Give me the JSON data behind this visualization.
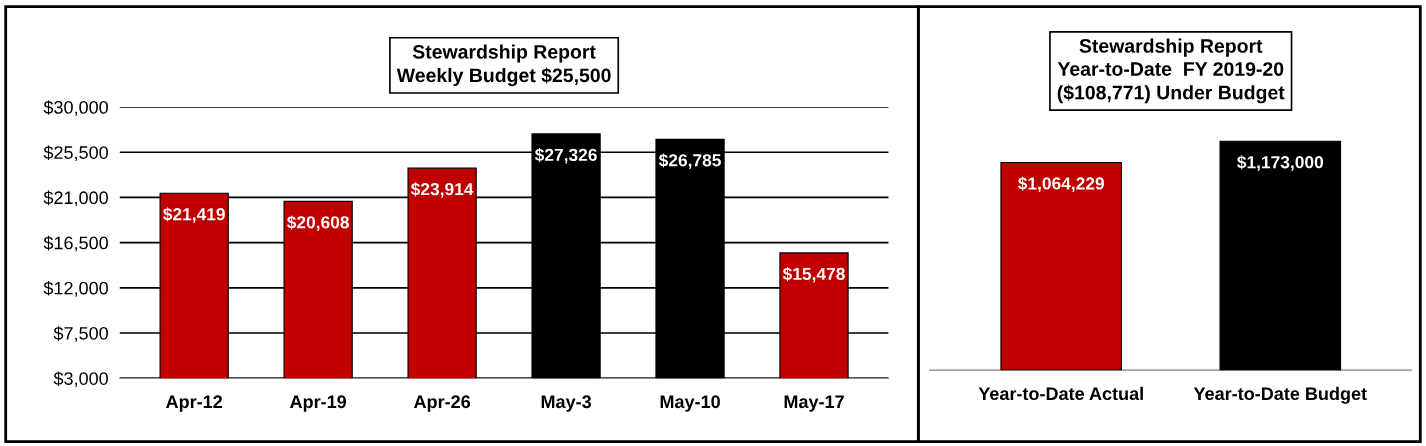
{
  "chart_data": [
    {
      "type": "bar",
      "title": "Stewardship Report\nWeekly Budget $25,500",
      "categories": [
        "Apr-12",
        "Apr-19",
        "Apr-26",
        "May-3",
        "May-10",
        "May-17"
      ],
      "values": [
        21419,
        20608,
        23914,
        27326,
        26785,
        15478
      ],
      "colors": [
        "#c00000",
        "#c00000",
        "#c00000",
        "#000000",
        "#000000",
        "#c00000"
      ],
      "value_labels": [
        "$21,419",
        "$20,608",
        "$23,914",
        "$27,326",
        "$26,785",
        "$15,478"
      ],
      "ylim": [
        3000,
        30000
      ],
      "yticks": [
        {
          "value": 3000,
          "label": "$3,000"
        },
        {
          "value": 7500,
          "label": "$7,500"
        },
        {
          "value": 12000,
          "label": "$12,000"
        },
        {
          "value": 16500,
          "label": "$16,500"
        },
        {
          "value": 21000,
          "label": "$21,000"
        },
        {
          "value": 25500,
          "label": "$25,500"
        },
        {
          "value": 30000,
          "label": "$30,000"
        }
      ],
      "grid": "y"
    },
    {
      "type": "bar",
      "title": "Stewardship Report\nYear-to-Date  FY 2019-20\n($108,771) Under Budget",
      "categories": [
        "Year-to-Date Actual",
        "Year-to-Date Budget"
      ],
      "values": [
        1064229,
        1173000
      ],
      "colors": [
        "#c00000",
        "#000000"
      ],
      "value_labels": [
        "$1,064,229",
        "$1,173,000"
      ],
      "tick_labels": "x"
    }
  ]
}
